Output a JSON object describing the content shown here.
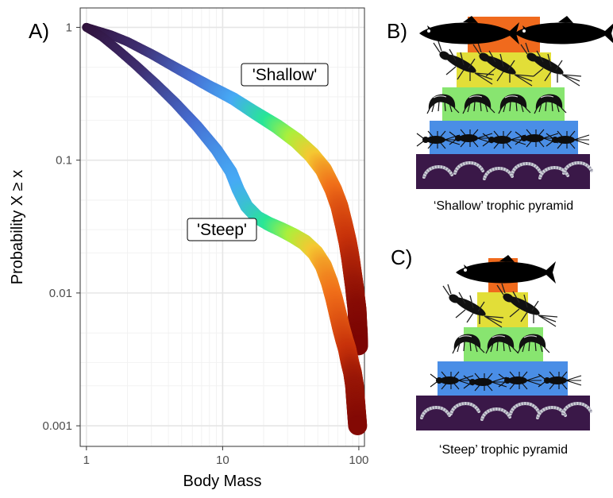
{
  "panel_labels": {
    "a": "A)",
    "b": "B)",
    "c": "C)"
  },
  "chart_data": {
    "type": "scatter",
    "title": "",
    "xlabel": "Body Mass",
    "ylabel": "Probability X ≥ x",
    "x_scale": "log10",
    "y_scale": "log10",
    "xlim": [
      0.9,
      110
    ],
    "ylim": [
      0.0007,
      1.4
    ],
    "x_ticks": [
      {
        "value": 1,
        "label": "1"
      },
      {
        "value": 10,
        "label": "10"
      },
      {
        "value": 100,
        "label": "100"
      }
    ],
    "y_ticks": [
      {
        "value": 1,
        "label": "1"
      },
      {
        "value": 0.1,
        "label": "0.1"
      },
      {
        "value": 0.01,
        "label": "0.01"
      },
      {
        "value": 0.001,
        "label": "0.001"
      }
    ],
    "grid": true,
    "color_scale": "turbo (dark purple at small body mass → blue → green → yellow → orange → dark red at large body mass)",
    "series": [
      {
        "name": "'Shallow'",
        "points": [
          [
            1,
            1
          ],
          [
            1.5,
            0.88
          ],
          [
            2,
            0.78
          ],
          [
            3,
            0.63
          ],
          [
            5,
            0.47
          ],
          [
            8,
            0.36
          ],
          [
            12,
            0.29
          ],
          [
            17,
            0.23
          ],
          [
            25,
            0.18
          ],
          [
            35,
            0.14
          ],
          [
            45,
            0.11
          ],
          [
            55,
            0.085
          ],
          [
            65,
            0.06
          ],
          [
            72,
            0.045
          ],
          [
            78,
            0.032
          ],
          [
            83,
            0.024
          ],
          [
            87,
            0.018
          ],
          [
            90,
            0.014
          ],
          [
            93,
            0.011
          ],
          [
            95,
            0.009
          ],
          [
            97,
            0.0075
          ],
          [
            98,
            0.006
          ],
          [
            99,
            0.005
          ],
          [
            99.5,
            0.004
          ]
        ]
      },
      {
        "name": "'Steep'",
        "points": [
          [
            1,
            1
          ],
          [
            1.3,
            0.85
          ],
          [
            1.7,
            0.68
          ],
          [
            2.3,
            0.52
          ],
          [
            3.2,
            0.38
          ],
          [
            4.5,
            0.27
          ],
          [
            6.5,
            0.18
          ],
          [
            9,
            0.12
          ],
          [
            11.5,
            0.082
          ],
          [
            13,
            0.06
          ],
          [
            15,
            0.045
          ],
          [
            18,
            0.037
          ],
          [
            22,
            0.033
          ],
          [
            27,
            0.03
          ],
          [
            33,
            0.027
          ],
          [
            40,
            0.024
          ],
          [
            48,
            0.02
          ],
          [
            55,
            0.016
          ],
          [
            61,
            0.012
          ],
          [
            66,
            0.009
          ],
          [
            70,
            0.007
          ],
          [
            74,
            0.0055
          ],
          [
            78,
            0.0045
          ],
          [
            82,
            0.0038
          ],
          [
            86,
            0.003
          ],
          [
            90,
            0.0025
          ],
          [
            93,
            0.002
          ],
          [
            96,
            0.0013
          ],
          [
            98,
            0.001
          ]
        ]
      }
    ],
    "annotations": [
      {
        "text": "'Shallow'",
        "x": 25,
        "y": 0.4
      },
      {
        "text": "'Steep'",
        "x": 9,
        "y": 0.028
      }
    ]
  },
  "pyramids": {
    "shallow": {
      "caption": "‘Shallow’ trophic pyramid",
      "levels": [
        {
          "color": "#3a1848",
          "organism": "worm",
          "count": 6
        },
        {
          "color": "#4a8ee6",
          "organism": "mayfly nymph",
          "count": 5
        },
        {
          "color": "#88e570",
          "organism": "amphipod",
          "count": 4
        },
        {
          "color": "#e2de38",
          "organism": "stonefly nymph",
          "count": 3
        },
        {
          "color": "#f06a1d",
          "organism": "fish",
          "count": 2
        }
      ]
    },
    "steep": {
      "caption": "‘Steep’ trophic pyramid",
      "levels": [
        {
          "color": "#3a1848",
          "organism": "worm",
          "count": 6
        },
        {
          "color": "#4a8ee6",
          "organism": "mayfly nymph",
          "count": 4
        },
        {
          "color": "#88e570",
          "organism": "amphipod",
          "count": 3
        },
        {
          "color": "#e2de38",
          "organism": "stonefly nymph",
          "count": 2
        },
        {
          "color": "#f06a1d",
          "organism": "fish",
          "count": 1
        }
      ]
    }
  }
}
